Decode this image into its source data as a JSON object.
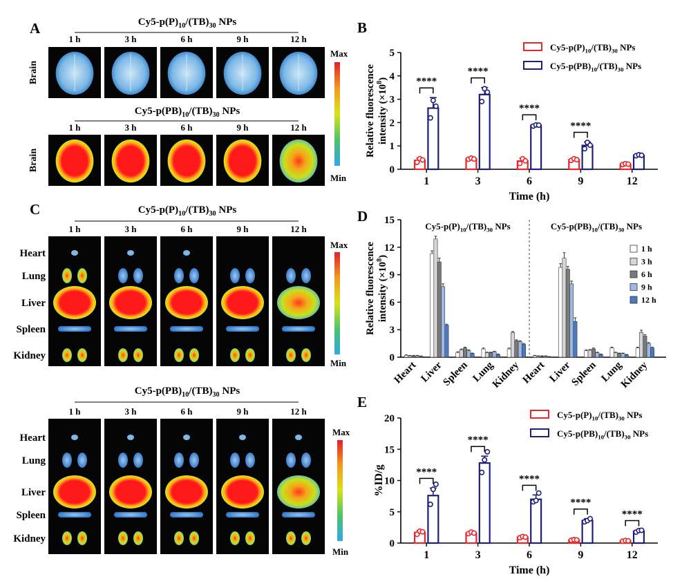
{
  "figure": {
    "panels": {
      "A": {
        "label": "A",
        "groups": [
          {
            "title_main": "Cy5-p(P)",
            "title_sub1": "10",
            "title_mid": "/(TB)",
            "title_sub2": "30",
            "title_end": " NPs",
            "times": [
              "1 h",
              "3 h",
              "6 h",
              "9 h",
              "12 h"
            ],
            "row_label": "Brain",
            "intensity": "low"
          },
          {
            "title_main": "Cy5-p(PB)",
            "title_sub1": "10",
            "title_mid": "/(TB)",
            "title_sub2": "30",
            "title_end": " NPs",
            "times": [
              "1 h",
              "3 h",
              "6 h",
              "9 h",
              "12 h"
            ],
            "row_label": "Brain",
            "intensity": "high"
          }
        ],
        "colorbar": {
          "max": "Max",
          "min": "Min"
        }
      },
      "C": {
        "label": "C",
        "organs": [
          "Heart",
          "Lung",
          "Liver",
          "Spleen",
          "Kidney"
        ],
        "groups": [
          {
            "title_main": "Cy5-p(P)",
            "title_sub1": "10",
            "title_mid": "/(TB)",
            "title_sub2": "30",
            "title_end": " NPs",
            "times": [
              "1 h",
              "3 h",
              "6 h",
              "9 h",
              "12 h"
            ]
          },
          {
            "title_main": "Cy5-p(PB)",
            "title_sub1": "10",
            "title_mid": "/(TB)",
            "title_sub2": "30",
            "title_end": " NPs",
            "times": [
              "1 h",
              "3 h",
              "6 h",
              "9 h",
              "12 h"
            ]
          }
        ],
        "colorbar": {
          "max": "Max",
          "min": "Min"
        }
      }
    },
    "colors": {
      "red_series": "#e8262a",
      "blue_series": "#1c1f7a",
      "point_red": "#e8262a",
      "point_blue": "#1c1f7a"
    }
  },
  "chart_data": [
    {
      "panel": "B",
      "type": "bar",
      "label": "B",
      "categories": [
        "1",
        "3",
        "6",
        "9",
        "12"
      ],
      "xlabel": "Time (h)",
      "ylabel_line1": "Relative fluorescence",
      "ylabel_line2": "intensity (×10",
      "ylabel_sup": "8",
      "ylabel_end": ")",
      "ylim": [
        0,
        5
      ],
      "yticks": [
        "0",
        "1",
        "2",
        "3",
        "4",
        "5"
      ],
      "series": [
        {
          "name": "Cy5-p(P)10/(TB)30 NPs",
          "values": [
            0.38,
            0.45,
            0.35,
            0.41,
            0.22
          ],
          "errors": [
            0.1,
            0.05,
            0.12,
            0.05,
            0.04
          ],
          "points": [
            [
              0.3,
              0.45,
              0.4
            ],
            [
              0.43,
              0.48,
              0.44
            ],
            [
              0.25,
              0.45,
              0.36
            ],
            [
              0.38,
              0.45,
              0.41
            ],
            [
              0.2,
              0.24,
              0.22
            ]
          ]
        },
        {
          "name": "Cy5-p(PB)10/(TB)30 NPs",
          "values": [
            2.62,
            3.2,
            1.88,
            1.02,
            0.6
          ],
          "errors": [
            0.45,
            0.3,
            0.04,
            0.15,
            0.03
          ],
          "points": [
            [
              2.2,
              2.95,
              2.7
            ],
            [
              2.9,
              3.45,
              3.3
            ],
            [
              1.85,
              1.9,
              1.89
            ],
            [
              0.88,
              1.15,
              1.03
            ],
            [
              0.58,
              0.62,
              0.6
            ]
          ]
        }
      ],
      "significance": [
        {
          "index": 0,
          "text": "****"
        },
        {
          "index": 1,
          "text": "****"
        },
        {
          "index": 2,
          "text": "****"
        },
        {
          "index": 3,
          "text": "****"
        }
      ],
      "legend": [
        {
          "main": "Cy5-p(P)",
          "sub1": "10",
          "mid": "/(TB)",
          "sub2": "30",
          "end": " NPs"
        },
        {
          "main": "Cy5-p(PB)",
          "sub1": "10",
          "mid": "/(TB)",
          "sub2": "30",
          "end": " NPs"
        }
      ],
      "legend_position": "top-right"
    },
    {
      "panel": "D",
      "type": "bar",
      "label": "D",
      "groups": [
        {
          "title_main": "Cy5-p(P)",
          "title_sub1": "10",
          "title_mid": "/(TB)",
          "title_sub2": "30",
          "title_end": " NPs",
          "categories": [
            "Heart",
            "Liver",
            "Spleen",
            "Lung",
            "Kidney"
          ]
        },
        {
          "title_main": "Cy5-p(PB)",
          "title_sub1": "10",
          "title_mid": "/(TB)",
          "title_sub2": "30",
          "title_end": " NPs",
          "categories": [
            "Heart",
            "Liver",
            "Spleen",
            "Lung",
            "Kidney"
          ]
        }
      ],
      "ylabel_line1": "Relative fluorescence",
      "ylabel_line2": "intensity (×10",
      "ylabel_sup": "8",
      "ylabel_end": ")",
      "ylim": [
        0,
        15
      ],
      "yticks": [
        "0",
        "3",
        "6",
        "9",
        "12",
        "15"
      ],
      "series_names": [
        "1 h",
        "3 h",
        "6 h",
        "9 h",
        "12 h"
      ],
      "series_colors": [
        "#ffffff",
        "#d6d6d6",
        "#7a7a7a",
        "#9db9e3",
        "#4d79c4"
      ],
      "values": [
        [
          [
            0.2,
            0.15,
            0.15,
            0.15,
            0.1
          ],
          [
            11.3,
            12.9,
            10.4,
            7.7,
            3.5
          ],
          [
            0.5,
            0.8,
            1.0,
            0.7,
            0.4
          ],
          [
            0.9,
            0.5,
            0.5,
            0.6,
            0.3
          ],
          [
            0.9,
            2.7,
            1.8,
            1.7,
            1.4
          ]
        ],
        [
          [
            0.15,
            0.1,
            0.1,
            0.1,
            0.05
          ],
          [
            9.8,
            10.8,
            9.6,
            8.0,
            3.9
          ],
          [
            0.7,
            0.75,
            0.9,
            0.5,
            0.3
          ],
          [
            1.0,
            0.5,
            0.4,
            0.4,
            0.25
          ],
          [
            1.0,
            2.7,
            2.3,
            1.5,
            1.0
          ]
        ]
      ],
      "errors": [
        [
          [
            0.05,
            0.05,
            0.05,
            0.05,
            0.03
          ],
          [
            0.3,
            0.3,
            0.4,
            0.3,
            0.1
          ],
          [
            0.1,
            0.1,
            0.1,
            0.1,
            0.05
          ],
          [
            0.1,
            0.05,
            0.05,
            0.05,
            0.05
          ],
          [
            0.1,
            0.1,
            0.1,
            0.1,
            0.1
          ]
        ],
        [
          [
            0.05,
            0.05,
            0.05,
            0.05,
            0.02
          ],
          [
            0.4,
            0.6,
            0.3,
            0.3,
            0.4
          ],
          [
            0.1,
            0.1,
            0.1,
            0.05,
            0.05
          ],
          [
            0.1,
            0.05,
            0.05,
            0.05,
            0.05
          ],
          [
            0.1,
            0.25,
            0.15,
            0.1,
            0.1
          ]
        ]
      ]
    },
    {
      "panel": "E",
      "type": "bar",
      "label": "E",
      "categories": [
        "1",
        "3",
        "6",
        "9",
        "12"
      ],
      "xlabel": "Time (h)",
      "ylabel": "%ID/g",
      "ylim": [
        0,
        20
      ],
      "yticks": [
        "0",
        "5",
        "10",
        "15",
        "20"
      ],
      "series": [
        {
          "name": "Cy5-p(P)10/(TB)30 NPs",
          "values": [
            1.7,
            1.6,
            0.95,
            0.5,
            0.35
          ],
          "errors": [
            0.3,
            0.2,
            0.1,
            0.05,
            0.05
          ],
          "points": [
            [
              1.4,
              1.9,
              1.8
            ],
            [
              1.5,
              1.75,
              1.6
            ],
            [
              0.85,
              1.05,
              0.95
            ],
            [
              0.45,
              0.55,
              0.5
            ],
            [
              0.3,
              0.4,
              0.35
            ]
          ]
        },
        {
          "name": "Cy5-p(PB)10/(TB)30 NPs",
          "values": [
            7.6,
            12.8,
            7.0,
            3.6,
            1.9
          ],
          "errors": [
            1.2,
            1.1,
            0.7,
            0.3,
            0.15
          ],
          "points": [
            [
              6.2,
              8.6,
              9.4
            ],
            [
              11.3,
              13.3,
              14.6
            ],
            [
              6.6,
              6.8,
              8.0
            ],
            [
              3.4,
              3.6,
              3.9
            ],
            [
              1.75,
              2.0,
              2.05
            ]
          ]
        }
      ],
      "significance": [
        {
          "index": 0,
          "text": "****"
        },
        {
          "index": 1,
          "text": "****"
        },
        {
          "index": 2,
          "text": "****"
        },
        {
          "index": 3,
          "text": "****"
        },
        {
          "index": 4,
          "text": "****"
        }
      ],
      "legend": [
        {
          "main": "Cy5-p(P)",
          "sub1": "10",
          "mid": "/(TB)",
          "sub2": "30",
          "end": " NPs"
        },
        {
          "main": "Cy5-p(PB)",
          "sub1": "10",
          "mid": "/(TB)",
          "sub2": "30",
          "end": " NPs"
        }
      ],
      "legend_position": "top-right"
    }
  ]
}
